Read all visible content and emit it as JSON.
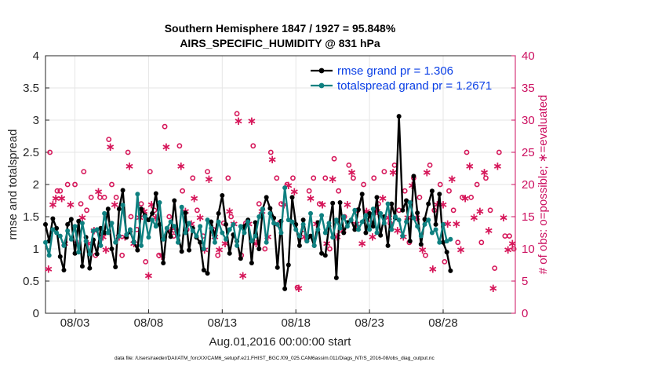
{
  "chart_data": {
    "type": "line",
    "title": "Southern Hemisphere 1847 / 1927 = 95.848%",
    "subtitle": "AIRS_SPECIFIC_HUMIDITY @ 831 hPa",
    "xlabel": "Aug.01,2016 00:00:00 start",
    "ylabel": "rmse and totalspread",
    "y2label": "# of obs: o=possible; ∗=evaluated",
    "xlim": [
      1,
      32.9
    ],
    "ylim": [
      0,
      4
    ],
    "y2lim": [
      0,
      40
    ],
    "xticks": [
      {
        "value": 3,
        "label": "08/03"
      },
      {
        "value": 8,
        "label": "08/08"
      },
      {
        "value": 13,
        "label": "08/13"
      },
      {
        "value": 18,
        "label": "08/18"
      },
      {
        "value": 23,
        "label": "08/23"
      },
      {
        "value": 28,
        "label": "08/28"
      }
    ],
    "yticks": [
      0,
      0.5,
      1,
      1.5,
      2,
      2.5,
      3,
      3.5,
      4
    ],
    "yticks_labels": [
      "0",
      "0.5",
      "1",
      "1.5",
      "2",
      "2.5",
      "3",
      "3.5",
      "4"
    ],
    "y2ticks": [
      0,
      5,
      10,
      15,
      20,
      25,
      30,
      35,
      40
    ],
    "y2ticks_labels": [
      "0",
      "5",
      "10",
      "15",
      "20",
      "25",
      "30",
      "35",
      "40"
    ],
    "grid": true,
    "legend_position": "top-right",
    "colors": {
      "rmse": "#000000",
      "totalspread": "#0e8080",
      "obs": "#d6175a",
      "axis_right": "#cc1060",
      "legend_text": "#0a3fe6"
    },
    "series": [
      {
        "name": "rmse grand pr = 1.306",
        "key": "rmse",
        "x_start": 1,
        "dx": 0.25,
        "values": [
          1.38,
          1.12,
          1.47,
          1.32,
          0.88,
          0.67,
          1.38,
          1.46,
          0.93,
          1.43,
          0.73,
          1.18,
          0.7,
          1.14,
          0.92,
          1.32,
          1.25,
          1.62,
          1.0,
          0.72,
          1.62,
          1.91,
          1.18,
          1.27,
          1.11,
          0.98,
          1.62,
          1.52,
          1.45,
          1.55,
          1.86,
          1.38,
          0.78,
          1.32,
          1.19,
          1.75,
          1.21,
          0.96,
          1.56,
          0.98,
          1.32,
          1.18,
          1.1,
          0.67,
          0.62,
          1.42,
          1.19,
          1.55,
          1.83,
          1.38,
          0.93,
          1.22,
          1.12,
          0.85,
          1.35,
          1.45,
          0.78,
          1.41,
          1.0,
          1.62,
          1.8,
          1.63,
          1.48,
          0.71,
          1.43,
          0.38,
          0.75,
          1.8,
          1.38,
          1.05,
          1.45,
          1.12,
          1.2,
          1.05,
          1.41,
          0.93,
          0.9,
          1.35,
          1.71,
          0.55,
          1.72,
          1.25,
          1.41,
          1.45,
          1.3,
          1.61,
          1.85,
          1.25,
          1.55,
          1.35,
          1.8,
          1.21,
          1.5,
          1.05,
          1.7,
          1.48,
          3.06,
          1.6,
          1.75,
          1.12,
          2.13,
          1.56,
          1.07,
          1.46,
          1.7,
          1.9,
          1.38,
          1.85,
          1.1,
          0.95,
          0.66
        ]
      },
      {
        "name": "totalspread grand pr = 1.2671",
        "key": "totalspread",
        "x_start": 1,
        "dx": 0.25,
        "values": [
          1.1,
          0.9,
          1.3,
          1.25,
          1.2,
          1.05,
          1.28,
          1.15,
          1.35,
          0.95,
          1.4,
          1.12,
          0.92,
          1.28,
          1.3,
          1.05,
          1.55,
          1.25,
          1.4,
          1.1,
          1.2,
          1.68,
          1.22,
          1.3,
          1.1,
          1.85,
          1.05,
          1.5,
          1.18,
          1.45,
          1.35,
          1.72,
          1.15,
          1.32,
          1.42,
          1.35,
          1.1,
          1.65,
          1.25,
          1.4,
          1.28,
          1.2,
          1.35,
          1.0,
          1.45,
          1.32,
          1.1,
          1.42,
          1.25,
          1.15,
          1.3,
          1.38,
          1.05,
          1.35,
          1.25,
          1.42,
          1.12,
          1.2,
          1.5,
          1.62,
          1.1,
          1.55,
          1.4,
          1.38,
          1.25,
          1.95,
          1.45,
          1.42,
          1.3,
          1.2,
          1.38,
          1.12,
          1.55,
          1.05,
          1.3,
          1.52,
          1.25,
          1.4,
          1.18,
          1.45,
          1.32,
          1.5,
          1.35,
          1.45,
          1.6,
          1.3,
          1.42,
          1.52,
          1.3,
          1.62,
          1.25,
          1.55,
          1.4,
          1.7,
          1.3,
          1.5,
          1.45,
          1.2,
          1.42,
          1.72,
          1.48,
          1.35,
          1.2,
          1.38,
          1.45,
          1.25,
          1.3,
          1.1,
          1.38,
          1.12,
          1.15
        ]
      },
      {
        "name": "# of obs possible",
        "key": "possible",
        "marker": "o",
        "points": [
          [
            1.3,
            25
          ],
          [
            1.8,
            19
          ],
          [
            2.0,
            19
          ],
          [
            2.5,
            20
          ],
          [
            3.0,
            20
          ],
          [
            3.4,
            17
          ],
          [
            3.6,
            22
          ],
          [
            3.8,
            16
          ],
          [
            4.1,
            18
          ],
          [
            4.4,
            9
          ],
          [
            4.7,
            18
          ],
          [
            5.0,
            18
          ],
          [
            5.3,
            27
          ],
          [
            5.5,
            20
          ],
          [
            5.8,
            18
          ],
          [
            6.2,
            9
          ],
          [
            6.6,
            25
          ],
          [
            6.8,
            15
          ],
          [
            7.2,
            13
          ],
          [
            7.5,
            17
          ],
          [
            7.8,
            8
          ],
          [
            8.1,
            22
          ],
          [
            8.4,
            16
          ],
          [
            8.7,
            9
          ],
          [
            9.1,
            29
          ],
          [
            9.4,
            15
          ],
          [
            9.7,
            12
          ],
          [
            10.1,
            26
          ],
          [
            10.3,
            19
          ],
          [
            10.6,
            13
          ],
          [
            11.0,
            21
          ],
          [
            11.3,
            16
          ],
          [
            11.7,
            12
          ],
          [
            12.0,
            22
          ],
          [
            12.4,
            13
          ],
          [
            12.7,
            9
          ],
          [
            13.1,
            14
          ],
          [
            13.4,
            21
          ],
          [
            13.6,
            15
          ],
          [
            14.0,
            31
          ],
          [
            14.3,
            9
          ],
          [
            14.6,
            14
          ],
          [
            15.1,
            26
          ],
          [
            15.5,
            17
          ],
          [
            15.9,
            10
          ],
          [
            16.3,
            25
          ],
          [
            16.7,
            21
          ],
          [
            17.0,
            17
          ],
          [
            17.4,
            20
          ],
          [
            17.8,
            21
          ],
          [
            18.1,
            4
          ],
          [
            18.5,
            13
          ],
          [
            18.9,
            19
          ],
          [
            19.2,
            21
          ],
          [
            19.6,
            17
          ],
          [
            20.0,
            21
          ],
          [
            20.3,
            10
          ],
          [
            20.6,
            24
          ],
          [
            20.9,
            19
          ],
          [
            21.3,
            15
          ],
          [
            21.6,
            23
          ],
          [
            21.9,
            21
          ],
          [
            22.2,
            16
          ],
          [
            22.6,
            20
          ],
          [
            23.0,
            14
          ],
          [
            23.3,
            21
          ],
          [
            23.6,
            17
          ],
          [
            24.0,
            22
          ],
          [
            24.4,
            14
          ],
          [
            24.7,
            23
          ],
          [
            25.0,
            16
          ],
          [
            25.4,
            19
          ],
          [
            25.7,
            11
          ],
          [
            26.0,
            21
          ],
          [
            26.4,
            18
          ],
          [
            26.8,
            9
          ],
          [
            27.1,
            23
          ],
          [
            27.4,
            16
          ],
          [
            27.8,
            20
          ],
          [
            28.1,
            8
          ],
          [
            28.4,
            19
          ],
          [
            28.7,
            16
          ],
          [
            29.0,
            11
          ],
          [
            29.3,
            18
          ],
          [
            29.6,
            25
          ],
          [
            29.9,
            18
          ],
          [
            30.3,
            20
          ],
          [
            30.6,
            11
          ],
          [
            30.9,
            21
          ],
          [
            31.2,
            16
          ],
          [
            31.5,
            7
          ],
          [
            31.8,
            25
          ],
          [
            32.2,
            12
          ],
          [
            32.5,
            12
          ],
          [
            32.8,
            10
          ]
        ]
      },
      {
        "name": "# of obs evaluated",
        "key": "evaluated",
        "marker": "*",
        "points": [
          [
            1.2,
            7
          ],
          [
            1.5,
            17
          ],
          [
            1.7,
            18
          ],
          [
            2.1,
            18
          ],
          [
            2.3,
            11
          ],
          [
            2.7,
            17
          ],
          [
            3.2,
            11
          ],
          [
            3.5,
            15
          ],
          [
            3.9,
            11
          ],
          [
            4.3,
            13
          ],
          [
            4.6,
            19
          ],
          [
            4.9,
            12
          ],
          [
            5.1,
            10
          ],
          [
            5.4,
            26
          ],
          [
            5.7,
            17
          ],
          [
            6.0,
            12
          ],
          [
            6.4,
            12
          ],
          [
            6.7,
            23
          ],
          [
            7.0,
            11
          ],
          [
            7.4,
            15
          ],
          [
            7.7,
            16
          ],
          [
            8.0,
            6
          ],
          [
            8.2,
            17
          ],
          [
            8.5,
            15
          ],
          [
            8.9,
            9
          ],
          [
            9.2,
            26
          ],
          [
            9.5,
            13
          ],
          [
            9.9,
            13
          ],
          [
            10.2,
            23
          ],
          [
            10.5,
            16
          ],
          [
            10.9,
            14
          ],
          [
            11.1,
            18
          ],
          [
            11.5,
            15
          ],
          [
            11.8,
            10
          ],
          [
            12.1,
            21
          ],
          [
            12.5,
            12
          ],
          [
            12.8,
            10
          ],
          [
            13.2,
            11
          ],
          [
            13.5,
            16
          ],
          [
            13.8,
            14
          ],
          [
            14.1,
            30
          ],
          [
            14.4,
            6
          ],
          [
            14.8,
            14
          ],
          [
            15.0,
            30
          ],
          [
            15.3,
            11
          ],
          [
            15.7,
            16
          ],
          [
            16.1,
            12
          ],
          [
            16.4,
            24
          ],
          [
            16.8,
            14
          ],
          [
            17.2,
            17
          ],
          [
            17.5,
            20
          ],
          [
            17.9,
            19
          ],
          [
            18.2,
            4
          ],
          [
            18.6,
            12
          ],
          [
            19.0,
            18
          ],
          [
            19.4,
            14
          ],
          [
            19.8,
            17
          ],
          [
            20.1,
            11
          ],
          [
            20.5,
            21
          ],
          [
            20.8,
            12
          ],
          [
            21.2,
            13
          ],
          [
            21.5,
            17
          ],
          [
            21.8,
            22
          ],
          [
            22.1,
            14
          ],
          [
            22.5,
            11
          ],
          [
            22.8,
            16
          ],
          [
            23.2,
            12
          ],
          [
            23.5,
            16
          ],
          [
            23.9,
            18
          ],
          [
            24.3,
            15
          ],
          [
            24.6,
            22
          ],
          [
            24.9,
            13
          ],
          [
            25.3,
            12
          ],
          [
            25.6,
            15
          ],
          [
            25.9,
            20
          ],
          [
            26.2,
            15
          ],
          [
            26.6,
            10
          ],
          [
            26.9,
            22
          ],
          [
            27.3,
            7
          ],
          [
            27.6,
            17
          ],
          [
            28.0,
            17
          ],
          [
            28.3,
            14
          ],
          [
            28.6,
            21
          ],
          [
            28.9,
            14
          ],
          [
            29.2,
            10
          ],
          [
            29.5,
            18
          ],
          [
            29.8,
            23
          ],
          [
            30.1,
            15
          ],
          [
            30.5,
            16
          ],
          [
            30.8,
            22
          ],
          [
            31.1,
            13
          ],
          [
            31.4,
            4
          ],
          [
            31.7,
            23
          ],
          [
            32.1,
            15
          ],
          [
            32.4,
            10
          ],
          [
            32.7,
            11
          ]
        ]
      }
    ],
    "legend": [
      "rmse grand pr = 1.306",
      "totalspread grand pr = 1.2671"
    ],
    "footnote": "data file: /Users/raeder/DAI/ATM_forcXX/CAM6_setup/f.e21.FHIST_BGC.f09_025.CAM6assim.011/Diags_NTrS_2016-08/obs_diag_output.nc"
  }
}
